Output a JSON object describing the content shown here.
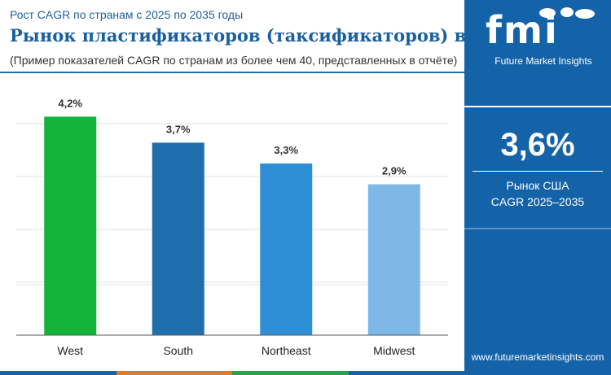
{
  "header": {
    "subtitle": "Рост CAGR по странам с 2025 по 2035 годы",
    "title": "Рынок пластификаторов (таксификаторов) в США",
    "note": "(Пример показателей CAGR по странам из более чем 40, представленных в отчёте)"
  },
  "sidebar": {
    "logo_letters": "fmi",
    "logo_subtitle": "Future Market Insights",
    "highlight_value": "3,6%",
    "highlight_label_line1": "Рынок США",
    "highlight_label_line2": "CAGR 2025–2035",
    "website": "www.futuremarketinsights.com"
  },
  "colors": {
    "sidebar_bg": "#1463a8",
    "title": "#1a5f9e",
    "bottom_bar": [
      "#1463a8",
      "#e07b2a",
      "#2aa14a",
      "#1463a8"
    ]
  },
  "chart_data": {
    "type": "bar",
    "categories": [
      "West",
      "South",
      "Northeast",
      "Midwest"
    ],
    "values": [
      4.2,
      3.7,
      3.3,
      2.9
    ],
    "value_labels": [
      "4,2%",
      "3,7%",
      "3,3%",
      "2,9%"
    ],
    "bar_colors": [
      "#14b33a",
      "#1f6fae",
      "#2f8fd6",
      "#7db8e6"
    ],
    "ylim": [
      0,
      4.3
    ],
    "grid": true,
    "title": "",
    "xlabel": "",
    "ylabel": ""
  }
}
